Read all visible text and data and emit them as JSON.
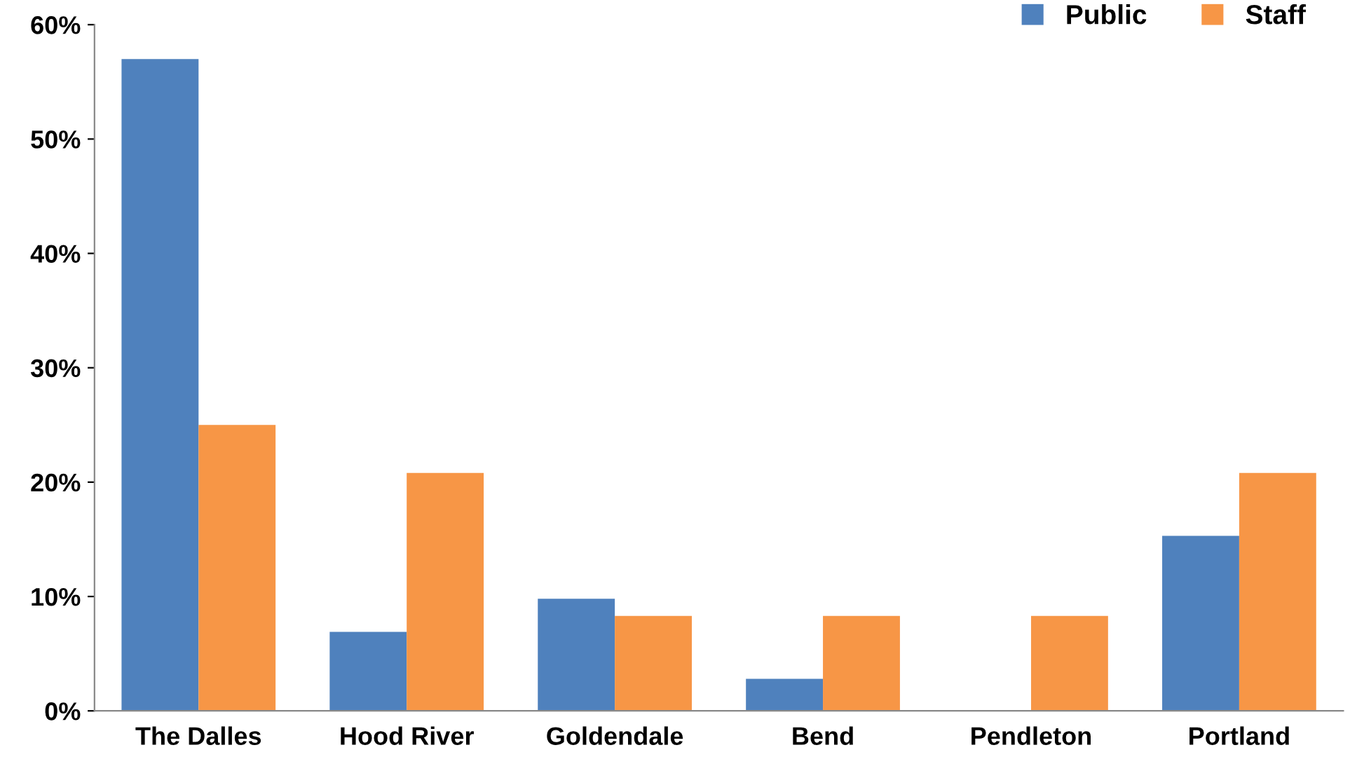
{
  "chart_data": {
    "type": "bar",
    "categories": [
      "The Dalles",
      "Hood River",
      "Goldendale",
      "Bend",
      "Pendleton",
      "Portland"
    ],
    "series": [
      {
        "name": "Public",
        "color": "#4f81bd",
        "values": [
          57,
          6.9,
          9.8,
          2.8,
          0,
          15.3
        ]
      },
      {
        "name": "Staff",
        "color": "#f79646",
        "values": [
          25,
          20.8,
          8.3,
          8.3,
          8.3,
          20.8
        ]
      }
    ],
    "ylim": [
      0,
      60
    ],
    "yticks": [
      {
        "value": 0,
        "label": "0%"
      },
      {
        "value": 10,
        "label": "10%"
      },
      {
        "value": 20,
        "label": "20%"
      },
      {
        "value": 30,
        "label": "30%"
      },
      {
        "value": 40,
        "label": "40%"
      },
      {
        "value": 50,
        "label": "50%"
      },
      {
        "value": 60,
        "label": "60%"
      }
    ],
    "grid": false,
    "legend": "top right"
  }
}
